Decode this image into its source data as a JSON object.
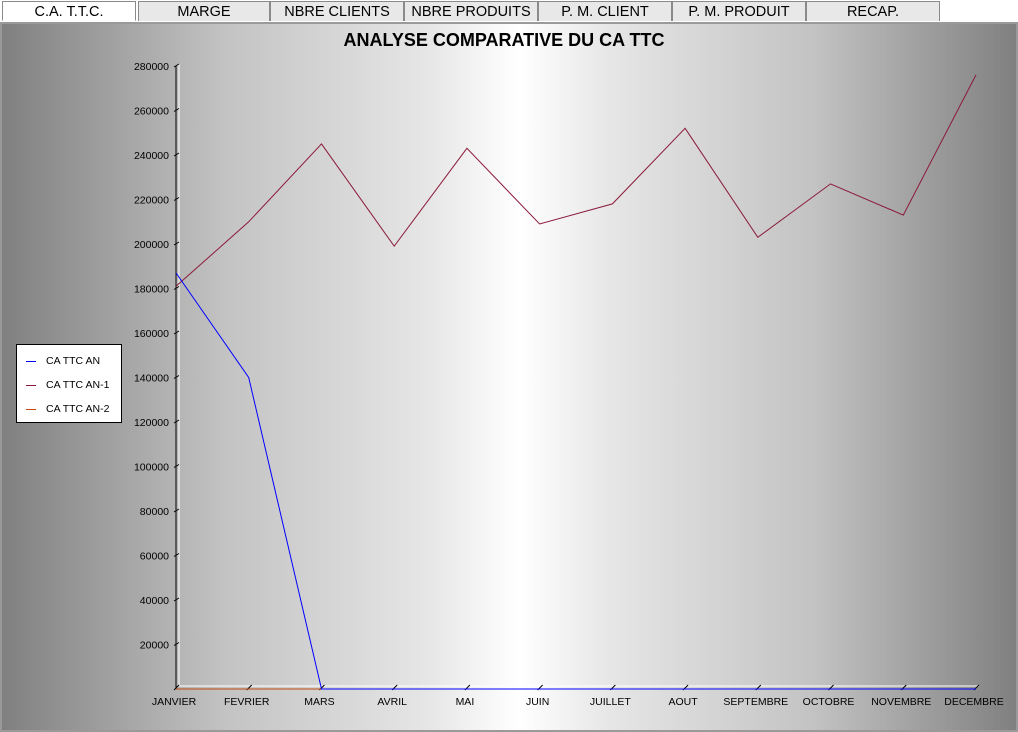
{
  "tabs": [
    {
      "label": "C.A. T.T.C.",
      "active": true
    },
    {
      "label": "MARGE",
      "active": false
    },
    {
      "label": "NBRE CLIENTS",
      "active": false
    },
    {
      "label": "NBRE PRODUITS",
      "active": false
    },
    {
      "label": "P. M. CLIENT",
      "active": false
    },
    {
      "label": "P. M. PRODUIT",
      "active": false
    },
    {
      "label": "RECAP.",
      "active": false
    }
  ],
  "chart_data": {
    "type": "line",
    "title": "ANALYSE COMPARATIVE DU CA TTC",
    "xlabel": "",
    "ylabel": "",
    "categories": [
      "JANVIER",
      "FEVRIER",
      "MARS",
      "AVRIL",
      "MAI",
      "JUIN",
      "JUILLET",
      "AOUT",
      "SEPTEMBRE",
      "OCTOBRE",
      "NOVEMBRE",
      "DECEMBRE"
    ],
    "ylim": [
      0,
      280000
    ],
    "yticks": [
      20000,
      40000,
      60000,
      80000,
      100000,
      120000,
      140000,
      160000,
      180000,
      200000,
      220000,
      240000,
      260000,
      280000
    ],
    "grid": false,
    "legend_position": "left",
    "series": [
      {
        "name": "CA TTC AN",
        "color": "#0000ff",
        "values": [
          187000,
          140000,
          0,
          0,
          0,
          0,
          0,
          0,
          0,
          0,
          0,
          0
        ]
      },
      {
        "name": "CA TTC AN-1",
        "color": "#8b1a3a",
        "values": [
          181000,
          210000,
          245000,
          199000,
          243000,
          209000,
          218000,
          252000,
          203000,
          227000,
          213000,
          276000
        ]
      },
      {
        "name": "CA TTC AN-2",
        "color": "#c04a10",
        "values": [
          0,
          0,
          0,
          0,
          0,
          0,
          0,
          0,
          0,
          0,
          0,
          0
        ]
      }
    ]
  }
}
